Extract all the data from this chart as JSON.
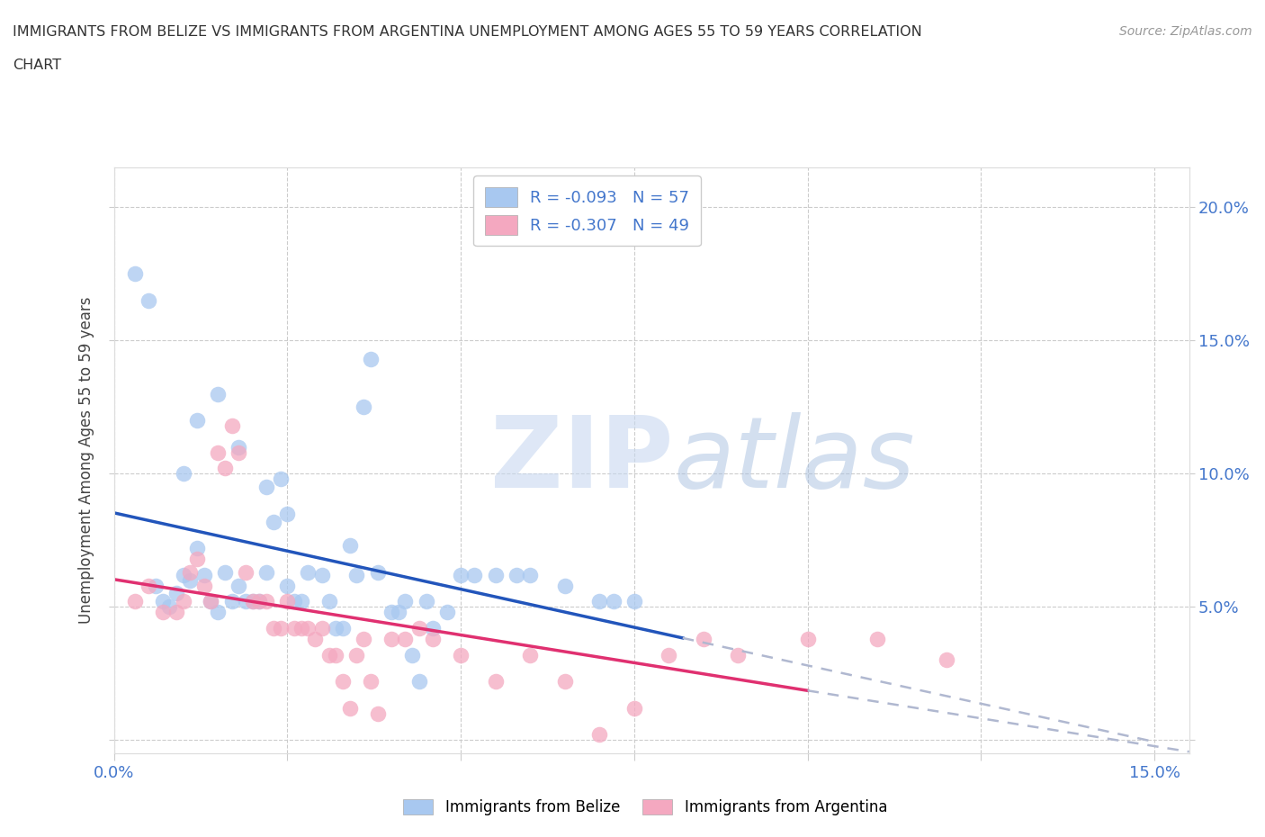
{
  "title_line1": "IMMIGRANTS FROM BELIZE VS IMMIGRANTS FROM ARGENTINA UNEMPLOYMENT AMONG AGES 55 TO 59 YEARS CORRELATION",
  "title_line2": "CHART",
  "source": "Source: ZipAtlas.com",
  "ylabel": "Unemployment Among Ages 55 to 59 years",
  "xlim": [
    0.0,
    0.155
  ],
  "ylim": [
    -0.005,
    0.215
  ],
  "xtick_vals": [
    0.0,
    0.025,
    0.05,
    0.075,
    0.1,
    0.125,
    0.15
  ],
  "ytick_vals": [
    0.0,
    0.05,
    0.1,
    0.15,
    0.2
  ],
  "belize_color": "#a8c8f0",
  "argentina_color": "#f4a8c0",
  "belize_line_color": "#2255bb",
  "argentina_line_color": "#e03070",
  "dash_color": "#b0b8d0",
  "belize_R": -0.093,
  "belize_N": 57,
  "argentina_R": -0.307,
  "argentina_N": 49,
  "label_color": "#4477cc",
  "belize_x": [
    0.003,
    0.005,
    0.006,
    0.007,
    0.008,
    0.009,
    0.01,
    0.011,
    0.012,
    0.013,
    0.014,
    0.015,
    0.016,
    0.017,
    0.018,
    0.019,
    0.02,
    0.021,
    0.022,
    0.023,
    0.024,
    0.025,
    0.026,
    0.027,
    0.028,
    0.03,
    0.031,
    0.032,
    0.033,
    0.034,
    0.035,
    0.036,
    0.037,
    0.038,
    0.04,
    0.041,
    0.042,
    0.043,
    0.044,
    0.045,
    0.046,
    0.048,
    0.05,
    0.052,
    0.055,
    0.058,
    0.06,
    0.065,
    0.07,
    0.072,
    0.075,
    0.01,
    0.012,
    0.015,
    0.018,
    0.022,
    0.025
  ],
  "belize_y": [
    0.175,
    0.165,
    0.058,
    0.052,
    0.05,
    0.055,
    0.062,
    0.06,
    0.072,
    0.062,
    0.052,
    0.048,
    0.063,
    0.052,
    0.058,
    0.052,
    0.052,
    0.052,
    0.063,
    0.082,
    0.098,
    0.058,
    0.052,
    0.052,
    0.063,
    0.062,
    0.052,
    0.042,
    0.042,
    0.073,
    0.062,
    0.125,
    0.143,
    0.063,
    0.048,
    0.048,
    0.052,
    0.032,
    0.022,
    0.052,
    0.042,
    0.048,
    0.062,
    0.062,
    0.062,
    0.062,
    0.062,
    0.058,
    0.052,
    0.052,
    0.052,
    0.1,
    0.12,
    0.13,
    0.11,
    0.095,
    0.085
  ],
  "argentina_x": [
    0.003,
    0.005,
    0.007,
    0.009,
    0.01,
    0.011,
    0.012,
    0.013,
    0.014,
    0.015,
    0.016,
    0.017,
    0.018,
    0.019,
    0.02,
    0.021,
    0.022,
    0.023,
    0.024,
    0.025,
    0.026,
    0.027,
    0.028,
    0.029,
    0.03,
    0.031,
    0.032,
    0.033,
    0.034,
    0.035,
    0.036,
    0.037,
    0.038,
    0.04,
    0.042,
    0.044,
    0.046,
    0.05,
    0.055,
    0.06,
    0.065,
    0.07,
    0.075,
    0.08,
    0.085,
    0.09,
    0.1,
    0.11,
    0.12
  ],
  "argentina_y": [
    0.052,
    0.058,
    0.048,
    0.048,
    0.052,
    0.063,
    0.068,
    0.058,
    0.052,
    0.108,
    0.102,
    0.118,
    0.108,
    0.063,
    0.052,
    0.052,
    0.052,
    0.042,
    0.042,
    0.052,
    0.042,
    0.042,
    0.042,
    0.038,
    0.042,
    0.032,
    0.032,
    0.022,
    0.012,
    0.032,
    0.038,
    0.022,
    0.01,
    0.038,
    0.038,
    0.042,
    0.038,
    0.032,
    0.022,
    0.032,
    0.022,
    0.002,
    0.012,
    0.032,
    0.038,
    0.032,
    0.038,
    0.038,
    0.03
  ]
}
